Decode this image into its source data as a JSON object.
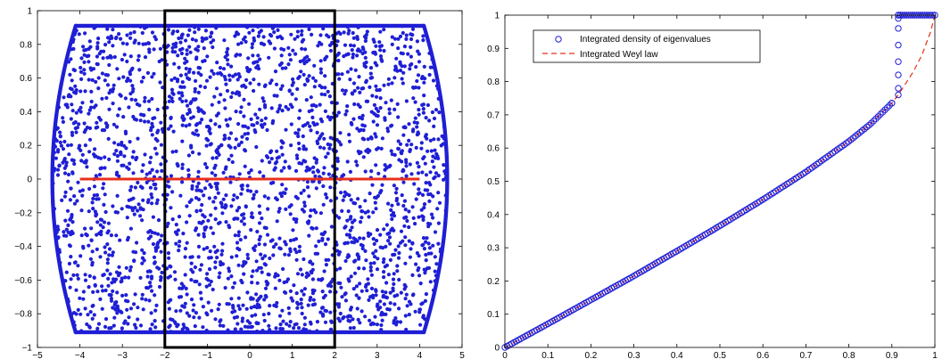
{
  "chart_data": [
    {
      "type": "scatter",
      "xlim": [
        -5,
        5
      ],
      "ylim": [
        -1,
        1
      ],
      "x_ticks": [
        -5,
        -4,
        -3,
        -2,
        -1,
        0,
        1,
        2,
        3,
        4,
        5
      ],
      "y_ticks": [
        -1,
        -0.8,
        -0.6,
        -0.4,
        -0.2,
        0,
        0.2,
        0.4,
        0.6,
        0.8,
        1
      ],
      "x_tick_labels": [
        "−5",
        "−4",
        "−3",
        "−2",
        "−1",
        "0",
        "1",
        "2",
        "3",
        "4",
        "5"
      ],
      "y_tick_labels": [
        "−1",
        "−0.8",
        "−0.6",
        "−0.4",
        "−0.2",
        "0",
        "0.2",
        "0.4",
        "0.6",
        "0.8",
        "1"
      ],
      "grid": false,
      "point_cloud": {
        "color": "#1f1fd6",
        "y_extent": [
          -0.91,
          0.91
        ],
        "x_edge_at_center": 4.65,
        "x_edge_at_top": 4.1
      },
      "red_segment": {
        "x": [
          -4,
          4
        ],
        "y": [
          0,
          0
        ],
        "color": "#e8301c"
      },
      "black_rectangle": {
        "x": [
          -2,
          2
        ],
        "y": [
          -1,
          1
        ],
        "color": "#000000"
      }
    },
    {
      "type": "line",
      "xlim": [
        0,
        1
      ],
      "ylim": [
        0,
        1
      ],
      "x_ticks": [
        0,
        0.1,
        0.2,
        0.3,
        0.4,
        0.5,
        0.6,
        0.7,
        0.8,
        0.9,
        1
      ],
      "y_ticks": [
        0,
        0.1,
        0.2,
        0.3,
        0.4,
        0.5,
        0.6,
        0.7,
        0.8,
        0.9,
        1
      ],
      "x_tick_labels": [
        "0",
        "0.1",
        "0.2",
        "0.3",
        "0.4",
        "0.5",
        "0.6",
        "0.7",
        "0.8",
        "0.9",
        "1"
      ],
      "y_tick_labels": [
        "0",
        "0.1",
        "0.2",
        "0.3",
        "0.4",
        "0.5",
        "0.6",
        "0.7",
        "0.8",
        "0.9",
        "1"
      ],
      "grid": false,
      "legend_position": "top-left",
      "series": [
        {
          "name": "Integrated density of eigenvalues",
          "marker": "circle",
          "color": "#1f1fd6",
          "x": [
            0,
            0.1,
            0.2,
            0.3,
            0.4,
            0.5,
            0.6,
            0.7,
            0.8,
            0.85,
            0.9,
            0.915,
            0.915,
            0.915,
            0.915,
            0.915,
            0.915,
            0.915,
            0.915,
            0.92,
            0.95,
            1.0
          ],
          "y": [
            0,
            0.071,
            0.143,
            0.215,
            0.29,
            0.366,
            0.445,
            0.528,
            0.62,
            0.672,
            0.735,
            0.76,
            0.78,
            0.82,
            0.86,
            0.91,
            0.96,
            0.99,
            1,
            1,
            1,
            1
          ]
        },
        {
          "name": "Integrated Weyl law",
          "line_style": "dashed",
          "color": "#e8301c",
          "x": [
            0,
            0.1,
            0.2,
            0.3,
            0.4,
            0.5,
            0.6,
            0.7,
            0.8,
            0.85,
            0.9,
            0.915,
            0.93,
            0.95,
            0.97,
            0.99,
            1.0
          ],
          "y": [
            0,
            0.071,
            0.143,
            0.215,
            0.29,
            0.366,
            0.445,
            0.528,
            0.62,
            0.672,
            0.735,
            0.76,
            0.79,
            0.83,
            0.88,
            0.95,
            1.0
          ]
        }
      ]
    }
  ]
}
